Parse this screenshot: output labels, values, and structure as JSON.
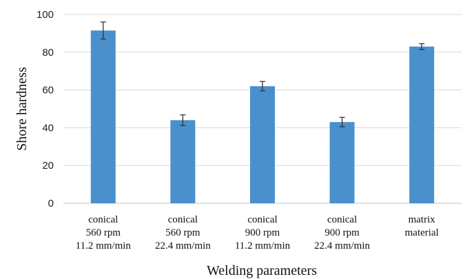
{
  "chart_data": {
    "type": "bar",
    "title": "",
    "xlabel": "Welding parameters",
    "ylabel": "Shore hardness",
    "ylim": [
      0,
      100
    ],
    "yticks": [
      0,
      20,
      40,
      60,
      80,
      100
    ],
    "grid": true,
    "categories": [
      [
        "conical",
        "560 rpm",
        "11.2  mm/min"
      ],
      [
        "conical",
        "560 rpm",
        "22.4 mm/min"
      ],
      [
        "conical",
        "900 rpm",
        "11.2  mm/min"
      ],
      [
        "conical",
        "900 rpm",
        "22.4 mm/min"
      ],
      [
        "matrix",
        "material"
      ]
    ],
    "values": [
      91.5,
      44,
      62,
      43,
      83
    ],
    "errors": [
      4.5,
      2.8,
      2.5,
      2.5,
      1.5
    ],
    "bar_color": "#4a90cc"
  }
}
